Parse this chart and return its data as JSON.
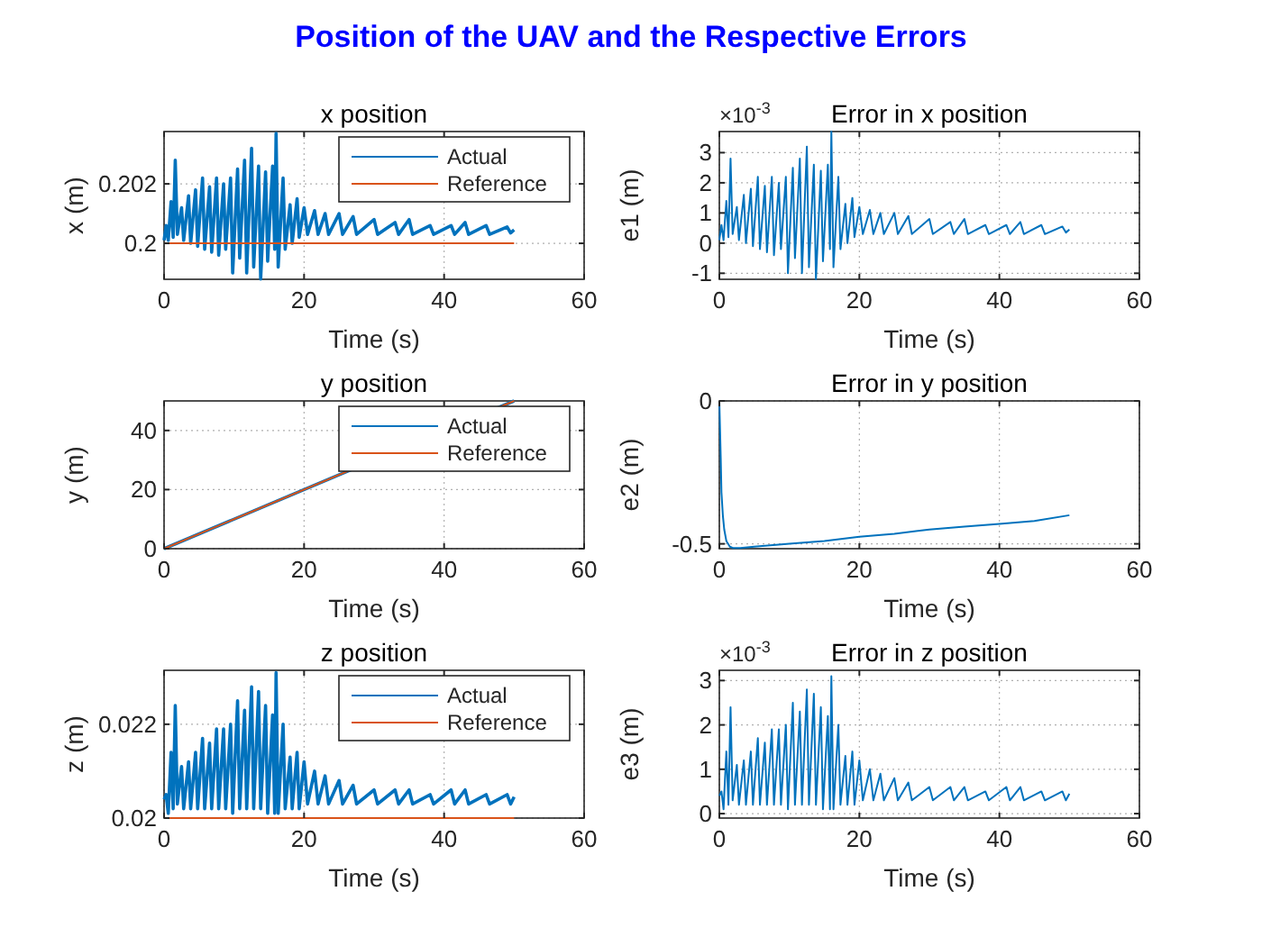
{
  "chart_data": [
    {
      "type": "line",
      "title": "x position",
      "xlabel": "Time (s)",
      "ylabel": "x (m)",
      "xlim": [
        0,
        60
      ],
      "xticks": [
        0,
        20,
        40,
        60
      ],
      "ylim": [
        0.19879,
        0.20376
      ],
      "yticks": [
        0.2,
        0.202
      ],
      "grid": true,
      "legend": "top right",
      "annotations": [
        "Position of the UAV and the Respective Errors"
      ],
      "x": [
        0,
        0.3,
        0.6,
        1,
        1.3,
        1.6,
        1.9,
        2.5,
        2.8,
        3.5,
        3.8,
        4.5,
        4.8,
        5.5,
        5.8,
        6.5,
        6.8,
        7.5,
        7.8,
        8.5,
        8.8,
        9.5,
        9.8,
        10.5,
        10.8,
        11.5,
        11.8,
        12.5,
        12.8,
        13.5,
        13.8,
        14.5,
        14.8,
        15.5,
        15.8,
        16,
        16.3,
        17,
        17.3,
        18,
        18.3,
        19,
        19.3,
        20,
        20.5,
        21.5,
        22,
        23,
        23.5,
        25,
        25.5,
        27,
        27.5,
        30,
        30.5,
        33,
        33.5,
        35,
        35.5,
        38,
        38.5,
        41,
        41.5,
        43,
        43.5,
        46,
        46.5,
        49,
        49.5,
        50
      ],
      "series": [
        {
          "name": "Actual",
          "color": "#0072bd",
          "values": [
            0.2001,
            0.2006,
            0.2001,
            0.2014,
            0.2002,
            0.2028,
            0.2003,
            0.2012,
            0.2001,
            0.2016,
            0.2,
            0.2018,
            0.1999,
            0.2022,
            0.1998,
            0.2019,
            0.1997,
            0.2022,
            0.1996,
            0.202,
            0.1998,
            0.2022,
            0.199,
            0.2025,
            0.1995,
            0.2028,
            0.199,
            0.2032,
            0.1992,
            0.2026,
            0.1988,
            0.2024,
            0.1994,
            0.2026,
            0.1998,
            0.2037,
            0.1992,
            0.2022,
            0.1998,
            0.2013,
            0.2,
            0.2015,
            0.2002,
            0.2012,
            0.2003,
            0.2011,
            0.2003,
            0.201,
            0.2003,
            0.201,
            0.2003,
            0.2009,
            0.2003,
            0.2008,
            0.2003,
            0.2007,
            0.2003,
            0.2008,
            0.2003,
            0.2006,
            0.2003,
            0.2006,
            0.2003,
            0.2007,
            0.2003,
            0.2006,
            0.2003,
            0.20055,
            0.20035,
            0.20045
          ]
        },
        {
          "name": "Reference",
          "color": "#d95319",
          "x": [
            0,
            50
          ],
          "values": [
            0.2,
            0.2
          ]
        }
      ]
    },
    {
      "type": "line",
      "title": "Error in x position",
      "xlabel": "Time (s)",
      "ylabel": "e1 (m)",
      "xlim": [
        0,
        60
      ],
      "xticks": [
        0,
        20,
        40,
        60
      ],
      "ylim": [
        -1.2,
        3.7
      ],
      "yticks": [
        -1,
        0,
        1,
        2,
        3
      ],
      "grid": true,
      "annotations": [
        "×10$^{-3}$"
      ],
      "x": [
        0,
        0.3,
        0.6,
        1,
        1.3,
        1.6,
        1.9,
        2.5,
        2.8,
        3.5,
        3.8,
        4.5,
        4.8,
        5.5,
        5.8,
        6.5,
        6.8,
        7.5,
        7.8,
        8.5,
        8.8,
        9.5,
        9.8,
        10.5,
        10.8,
        11.5,
        11.8,
        12.5,
        12.8,
        13.5,
        13.8,
        14.5,
        14.8,
        15.5,
        15.8,
        16,
        16.3,
        17,
        17.3,
        18,
        18.3,
        19,
        19.3,
        20,
        20.5,
        21.5,
        22,
        23,
        23.5,
        25,
        25.5,
        27,
        27.5,
        30,
        30.5,
        33,
        33.5,
        35,
        35.5,
        38,
        38.5,
        41,
        41.5,
        43,
        43.5,
        46,
        46.5,
        49,
        49.5,
        50
      ],
      "series": [
        {
          "color": "#0072bd",
          "values": [
            0.1,
            0.6,
            0.1,
            1.4,
            0.2,
            2.8,
            0.3,
            1.2,
            0.1,
            1.6,
            0,
            1.8,
            -0.1,
            2.2,
            -0.2,
            1.9,
            -0.3,
            2.2,
            -0.4,
            2,
            -0.2,
            2.2,
            -1,
            2.5,
            -0.5,
            2.8,
            -1,
            3.2,
            -0.8,
            2.6,
            -1.2,
            2.4,
            -0.6,
            2.6,
            -0.2,
            3.7,
            -0.8,
            2.2,
            -0.2,
            1.3,
            0,
            1.5,
            0.2,
            1.2,
            0.3,
            1.1,
            0.3,
            1,
            0.3,
            1,
            0.3,
            0.9,
            0.3,
            0.8,
            0.3,
            0.7,
            0.3,
            0.8,
            0.3,
            0.6,
            0.3,
            0.6,
            0.3,
            0.7,
            0.3,
            0.6,
            0.3,
            0.55,
            0.35,
            0.45
          ]
        }
      ]
    },
    {
      "type": "line",
      "title": "y position",
      "xlabel": "Time (s)",
      "ylabel": "y (m)",
      "xlim": [
        0,
        60
      ],
      "xticks": [
        0,
        20,
        40,
        60
      ],
      "ylim": [
        0,
        50
      ],
      "yticks": [
        0,
        20,
        40
      ],
      "grid": true,
      "legend": "top right",
      "series": [
        {
          "name": "Actual",
          "color": "#0072bd",
          "x": [
            0,
            50
          ],
          "values": [
            0,
            50
          ]
        },
        {
          "name": "Reference",
          "color": "#d95319",
          "x": [
            0,
            50
          ],
          "values": [
            0,
            50
          ]
        }
      ]
    },
    {
      "type": "line",
      "title": "Error in y position",
      "xlabel": "Time (s)",
      "ylabel": "e2 (m)",
      "xlim": [
        0,
        60
      ],
      "xticks": [
        0,
        20,
        40,
        60
      ],
      "ylim": [
        -0.517,
        0
      ],
      "yticks": [
        -0.5,
        0
      ],
      "grid": true,
      "series": [
        {
          "color": "#0072bd",
          "x": [
            0,
            0.2,
            0.3,
            0.5,
            0.7,
            1,
            1.5,
            2,
            3,
            5,
            10,
            15,
            20,
            25,
            30,
            35,
            40,
            45,
            50
          ],
          "values": [
            0,
            -0.2,
            -0.32,
            -0.4,
            -0.45,
            -0.49,
            -0.51,
            -0.515,
            -0.515,
            -0.51,
            -0.5,
            -0.49,
            -0.475,
            -0.465,
            -0.45,
            -0.44,
            -0.43,
            -0.42,
            -0.4
          ]
        }
      ]
    },
    {
      "type": "line",
      "title": "z position",
      "xlabel": "Time (s)",
      "ylabel": "z (m)",
      "xlim": [
        0,
        60
      ],
      "xticks": [
        0,
        20,
        40,
        60
      ],
      "ylim": [
        0.02,
        0.02315
      ],
      "yticks": [
        0.02,
        0.022
      ],
      "grid": true,
      "legend": "top right",
      "x": [
        0,
        0.3,
        0.6,
        1,
        1.3,
        1.6,
        1.9,
        2.5,
        2.8,
        3.5,
        3.8,
        4.5,
        4.8,
        5.5,
        5.8,
        6.5,
        6.8,
        7.5,
        7.8,
        8.5,
        8.8,
        9.5,
        9.8,
        10.5,
        10.8,
        11.5,
        11.8,
        12.5,
        12.8,
        13.5,
        13.8,
        14.5,
        14.8,
        15.5,
        15.8,
        16,
        16.3,
        17,
        17.3,
        18,
        18.3,
        19,
        19.3,
        20,
        20.5,
        21.5,
        22,
        23,
        23.5,
        25,
        25.5,
        27,
        27.5,
        30,
        30.5,
        33,
        33.5,
        35,
        35.5,
        38,
        38.5,
        41,
        41.5,
        43,
        43.5,
        46,
        46.5,
        49,
        49.5,
        50
      ],
      "series": [
        {
          "name": "Actual",
          "color": "#0072bd",
          "values": [
            0.0204,
            0.0205,
            0.0201,
            0.0214,
            0.0202,
            0.0224,
            0.0203,
            0.0211,
            0.0202,
            0.0212,
            0.0202,
            0.0214,
            0.0202,
            0.0217,
            0.0202,
            0.0216,
            0.0202,
            0.0219,
            0.0202,
            0.0219,
            0.0202,
            0.022,
            0.0201,
            0.0225,
            0.0202,
            0.0223,
            0.0202,
            0.0228,
            0.0202,
            0.0227,
            0.0202,
            0.0224,
            0.0201,
            0.0222,
            0.0201,
            0.0231,
            0.0201,
            0.022,
            0.0202,
            0.0213,
            0.0202,
            0.0214,
            0.0202,
            0.0212,
            0.0203,
            0.021,
            0.0203,
            0.0209,
            0.0203,
            0.0208,
            0.0203,
            0.0207,
            0.0203,
            0.0206,
            0.0203,
            0.0206,
            0.0203,
            0.0206,
            0.0203,
            0.0205,
            0.0203,
            0.0206,
            0.0203,
            0.0206,
            0.0203,
            0.0205,
            0.0203,
            0.0205,
            0.0203,
            0.02045
          ]
        },
        {
          "name": "Reference",
          "color": "#d95319",
          "x": [
            0,
            50
          ],
          "values": [
            0.02,
            0.02
          ]
        }
      ]
    },
    {
      "type": "line",
      "title": "Error in z position",
      "xlabel": "Time (s)",
      "ylabel": "e3 (m)",
      "xlim": [
        0,
        60
      ],
      "xticks": [
        0,
        20,
        40,
        60
      ],
      "ylim": [
        -0.1,
        3.23
      ],
      "yticks": [
        0,
        1,
        2,
        3
      ],
      "grid": true,
      "annotations": [
        "×10$^{-3}$"
      ],
      "x": [
        0,
        0.3,
        0.6,
        1,
        1.3,
        1.6,
        1.9,
        2.5,
        2.8,
        3.5,
        3.8,
        4.5,
        4.8,
        5.5,
        5.8,
        6.5,
        6.8,
        7.5,
        7.8,
        8.5,
        8.8,
        9.5,
        9.8,
        10.5,
        10.8,
        11.5,
        11.8,
        12.5,
        12.8,
        13.5,
        13.8,
        14.5,
        14.8,
        15.5,
        15.8,
        16,
        16.3,
        17,
        17.3,
        18,
        18.3,
        19,
        19.3,
        20,
        20.5,
        21.5,
        22,
        23,
        23.5,
        25,
        25.5,
        27,
        27.5,
        30,
        30.5,
        33,
        33.5,
        35,
        35.5,
        38,
        38.5,
        41,
        41.5,
        43,
        43.5,
        46,
        46.5,
        49,
        49.5,
        50
      ],
      "series": [
        {
          "color": "#0072bd",
          "values": [
            0.4,
            0.5,
            0.1,
            1.4,
            0.2,
            2.4,
            0.3,
            1.1,
            0.2,
            1.2,
            0.2,
            1.4,
            0.2,
            1.7,
            0.2,
            1.6,
            0.2,
            1.9,
            0.2,
            1.9,
            0.2,
            2,
            0.1,
            2.5,
            0.2,
            2.3,
            0.2,
            2.8,
            0.2,
            2.7,
            0.2,
            2.4,
            0.1,
            2.2,
            0.1,
            3.1,
            0.1,
            2,
            0.2,
            1.3,
            0.2,
            1.4,
            0.2,
            1.2,
            0.3,
            1,
            0.3,
            0.9,
            0.3,
            0.8,
            0.3,
            0.7,
            0.3,
            0.6,
            0.3,
            0.6,
            0.3,
            0.6,
            0.3,
            0.5,
            0.3,
            0.6,
            0.3,
            0.6,
            0.3,
            0.5,
            0.3,
            0.5,
            0.3,
            0.45
          ]
        }
      ]
    }
  ]
}
